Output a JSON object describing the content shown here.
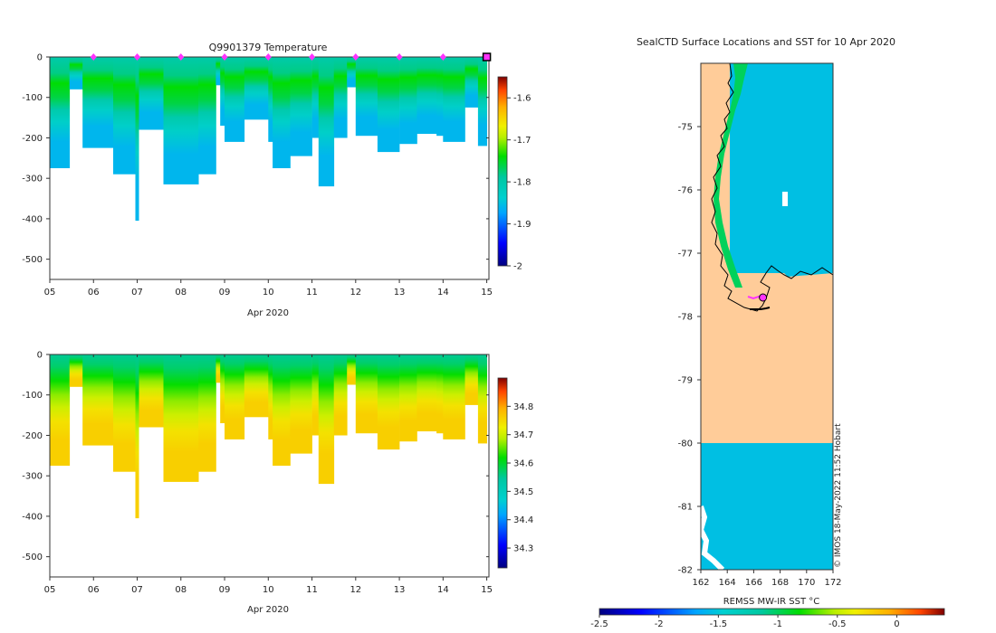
{
  "chart_data": [
    {
      "type": "heatmap",
      "name": "temperature-section",
      "title": "Q9901379  Temperature",
      "xlabel": "Apr 2020",
      "x_ticks": [
        "05",
        "06",
        "07",
        "08",
        "09",
        "10",
        "11",
        "12",
        "13",
        "14",
        "15"
      ],
      "xlim": [
        5,
        15.05
      ],
      "ylim": [
        0,
        -550
      ],
      "y_ticks": [
        0,
        -100,
        -200,
        -300,
        -400,
        -500
      ],
      "colorbar": {
        "min": -2.0,
        "max": -1.55,
        "ticks": [
          -1.6,
          -1.7,
          -1.8,
          -1.9,
          -2
        ]
      },
      "profile_days": [
        6,
        7,
        8,
        9,
        10,
        11,
        12,
        13,
        14
      ],
      "last_location_day": 15,
      "column_starts": [
        5,
        5.45,
        5.75,
        6.45,
        7,
        7.6,
        8.4,
        8.8,
        8.9,
        9,
        9.45,
        10,
        10.1,
        10.5,
        11,
        11.15,
        11.5,
        11.8,
        12,
        12.5,
        13,
        13.4,
        13.85,
        14,
        14.5,
        14.8,
        15
      ],
      "column_depths": [
        275,
        80,
        225,
        290,
        180,
        315,
        290,
        70,
        170,
        210,
        155,
        210,
        275,
        245,
        200,
        320,
        200,
        75,
        195,
        235,
        215,
        190,
        195,
        210,
        125,
        220,
        0
      ],
      "notches": [
        {
          "day": 7.0,
          "depth": 405
        }
      ],
      "temperature_profile": [
        {
          "depth": 0,
          "value": -1.8
        },
        {
          "depth": 80,
          "value": -1.78
        },
        {
          "depth": 130,
          "value": -1.74
        },
        {
          "depth": 200,
          "value": -1.76
        },
        {
          "depth": 260,
          "value": -1.8
        },
        {
          "depth": 320,
          "value": -1.83
        },
        {
          "depth": 420,
          "value": -1.86
        }
      ]
    },
    {
      "type": "heatmap",
      "name": "salinity-section",
      "title": "",
      "xlabel": "Apr 2020",
      "x_ticks": [
        "05",
        "06",
        "07",
        "08",
        "09",
        "10",
        "11",
        "12",
        "13",
        "14",
        "15"
      ],
      "xlim": [
        5,
        15.05
      ],
      "ylim": [
        0,
        -550
      ],
      "y_ticks": [
        0,
        -100,
        -200,
        -300,
        -400,
        -500
      ],
      "colorbar": {
        "min": 34.23,
        "max": 34.9,
        "ticks": [
          34.8,
          34.7,
          34.6,
          34.5,
          34.4,
          34.3
        ]
      },
      "salinity_profile": [
        {
          "depth": 0,
          "value": 34.55
        },
        {
          "depth": 60,
          "value": 34.57
        },
        {
          "depth": 130,
          "value": 34.62
        },
        {
          "depth": 200,
          "value": 34.67
        },
        {
          "depth": 260,
          "value": 34.7
        },
        {
          "depth": 330,
          "value": 34.74
        },
        {
          "depth": 420,
          "value": 34.76
        }
      ]
    },
    {
      "type": "map",
      "name": "sst-map",
      "title": "SealCTD Surface Locations and SST for 10 Apr 2020",
      "x_ticks": [
        162,
        164,
        166,
        168,
        170,
        172
      ],
      "y_ticks": [
        -75,
        -76,
        -77,
        -78,
        -79,
        -80,
        -81,
        -82
      ],
      "xlim": [
        162,
        172
      ],
      "ylim": [
        -82,
        -74.0
      ],
      "colorbar_label": "REMSS MW-IR SST °C",
      "colorbar": {
        "min": -2.5,
        "max": 0.4,
        "ticks": [
          "-2.5",
          "-2",
          "-1.5",
          "-1",
          "-0.5",
          "0"
        ]
      },
      "sea_sst": -1.55,
      "coast_sst": -1.0,
      "no_data_band": [
        -80.0,
        -78.0
      ],
      "last_location": {
        "lon": 166.7,
        "lat": -77.7
      },
      "credit": "© IMOS 18-May-2022 11:52 Hobart"
    }
  ]
}
